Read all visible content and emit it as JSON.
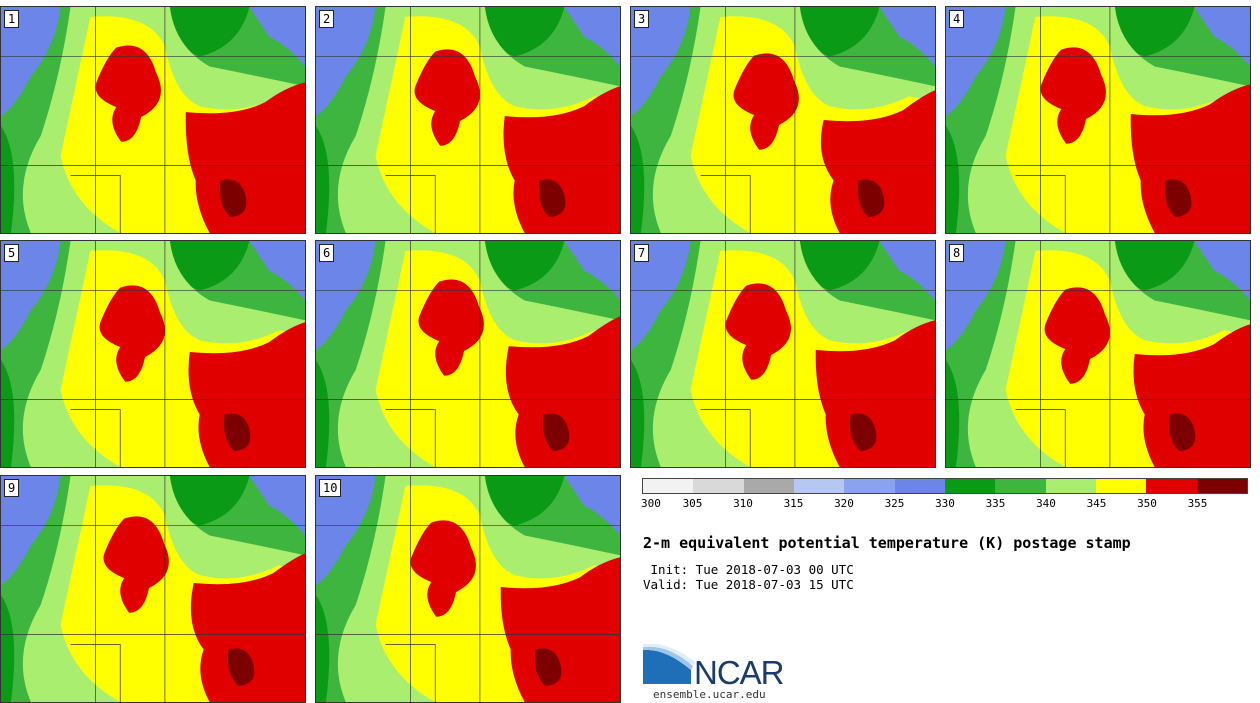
{
  "title": "2-m equivalent potential temperature (K) postage stamp",
  "init_line": " Init: Tue 2018-07-03 00 UTC",
  "valid_line": "Valid: Tue 2018-07-03 15 UTC",
  "logo_text": "NCAR",
  "website": "ensemble.ucar.edu",
  "members": [
    "1",
    "2",
    "3",
    "4",
    "5",
    "6",
    "7",
    "8",
    "9",
    "10"
  ],
  "colorbar": {
    "units": "K",
    "ticks": [
      "300",
      "305",
      "310",
      "315",
      "320",
      "325",
      "330",
      "335",
      "340",
      "345",
      "350",
      "355"
    ],
    "colors": [
      "#f2f2f2",
      "#d9d9d9",
      "#a9a9a9",
      "#b7c7f3",
      "#8aa3ee",
      "#6b86e8",
      "#0b9a16",
      "#3db53f",
      "#a9ee6f",
      "#ffff00",
      "#e10000",
      "#7d0000"
    ]
  }
}
